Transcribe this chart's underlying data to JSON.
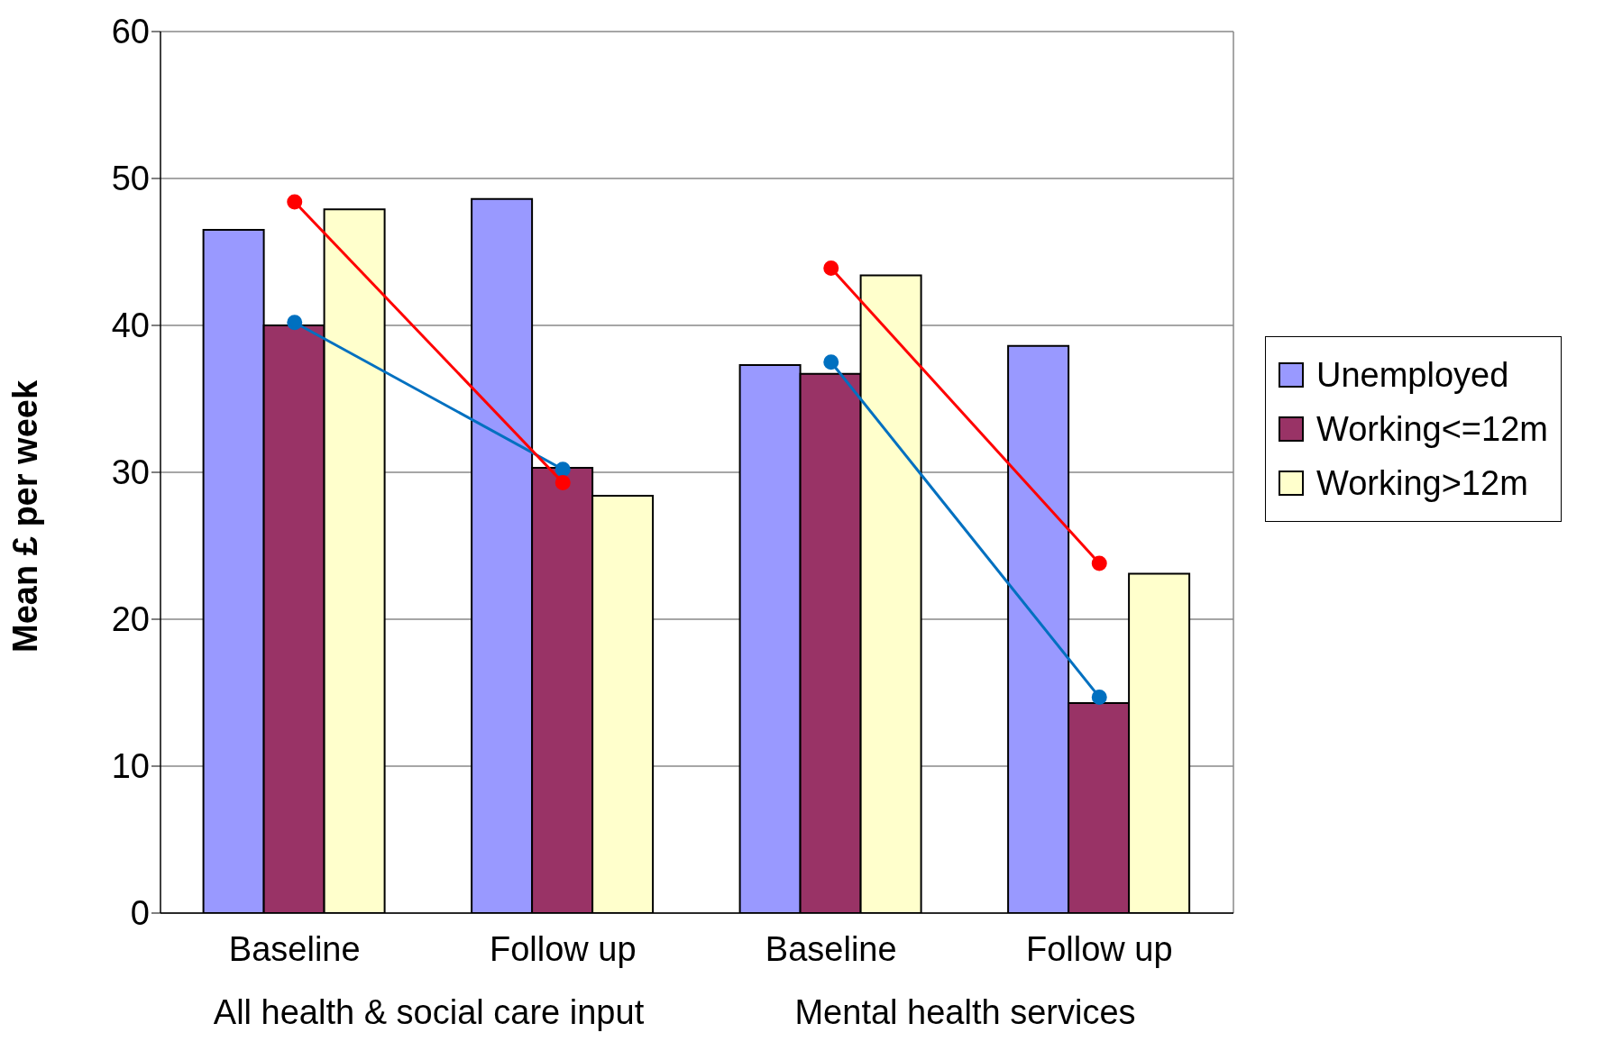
{
  "chart_data": {
    "type": "bar",
    "ylabel": "Mean £ per week",
    "categories": [
      "Baseline",
      "Follow up",
      "Baseline",
      "Follow up"
    ],
    "series": [
      {
        "name": "Unemployed",
        "color": "#9999ff",
        "values": [
          46.5,
          48.6,
          37.3,
          38.6
        ]
      },
      {
        "name": "Working<=12m",
        "color": "#993366",
        "values": [
          40.0,
          30.3,
          36.7,
          14.3
        ]
      },
      {
        "name": "Working>12m",
        "color": "#ffffcc",
        "values": [
          47.9,
          28.4,
          43.4,
          23.1
        ]
      },
      {
        "type": "line",
        "color": "#0070c0",
        "values": [
          40.2,
          30.2,
          null,
          null
        ]
      },
      {
        "type": "line",
        "color": "#ff0000",
        "values": [
          48.4,
          29.3,
          null,
          null
        ]
      },
      {
        "type": "line",
        "color": "#0070c0",
        "values": [
          null,
          null,
          37.5,
          14.7
        ]
      },
      {
        "type": "line",
        "color": "#ff0000",
        "values": [
          null,
          null,
          43.9,
          23.8
        ]
      }
    ],
    "annotations": [
      "All health & social care input",
      "Mental health services"
    ],
    "ylim": [
      0,
      60
    ],
    "yticks": [
      0,
      10,
      20,
      30,
      40,
      50,
      60
    ],
    "grid": "y",
    "legend": "right",
    "marker": "circle"
  }
}
